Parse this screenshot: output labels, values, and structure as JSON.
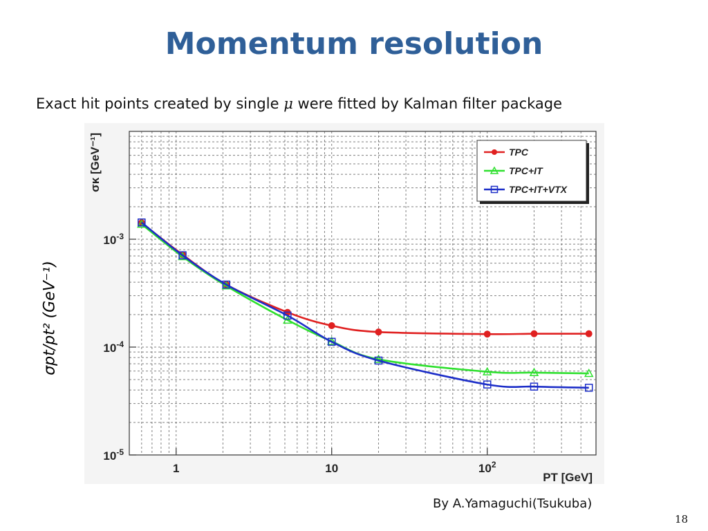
{
  "slide": {
    "title": "Momentum resolution",
    "subtitle_pre": "Exact hit points created by single ",
    "subtitle_mu": "μ",
    "subtitle_post": " were fitted by Kalman filter package",
    "ylabel": "σpt/pt² (GeV⁻¹)",
    "credit": "By A.Yamaguchi(Tsukuba)",
    "page_number": "18"
  },
  "chart_data": {
    "type": "line",
    "xscale": "log",
    "yscale": "log",
    "xlim": [
      0.5,
      500
    ],
    "ylim": [
      1e-05,
      0.01
    ],
    "xlabel": "PT [GeV]",
    "ylabel": "σκ [GeV⁻¹]",
    "x_ticks": [
      {
        "value": 1,
        "label": "1"
      },
      {
        "value": 10,
        "label": "10"
      },
      {
        "value": 100,
        "label": "10²"
      }
    ],
    "y_ticks": [
      {
        "value": 1e-05,
        "label": "10⁻⁵"
      },
      {
        "value": 0.0001,
        "label": "10⁻⁴"
      },
      {
        "value": 0.001,
        "label": "10⁻³"
      }
    ],
    "grid": true,
    "legend_position": "top-right",
    "series": [
      {
        "name": "TPC",
        "color": "#e02020",
        "marker": "circle",
        "x": [
          0.6,
          1.1,
          2.1,
          5.2,
          10,
          20,
          100,
          200,
          450
        ],
        "y": [
          0.00142,
          0.00072,
          0.00038,
          0.00021,
          0.000158,
          0.000138,
          0.000132,
          0.000133,
          0.000133
        ]
      },
      {
        "name": "TPC+IT",
        "color": "#2ee02e",
        "marker": "triangle",
        "x": [
          0.6,
          1.1,
          2.1,
          5.2,
          10,
          20,
          100,
          200,
          450
        ],
        "y": [
          0.00138,
          0.00069,
          0.00037,
          0.000178,
          0.000113,
          7.7e-05,
          5.9e-05,
          5.8e-05,
          5.7e-05
        ]
      },
      {
        "name": "TPC+IT+VTX",
        "color": "#1c2ec8",
        "marker": "square",
        "x": [
          0.6,
          1.1,
          2.1,
          5.2,
          10,
          20,
          100,
          200,
          450
        ],
        "y": [
          0.00143,
          0.00071,
          0.00038,
          0.000196,
          0.000112,
          7.5e-05,
          4.5e-05,
          4.3e-05,
          4.2e-05
        ]
      }
    ]
  }
}
